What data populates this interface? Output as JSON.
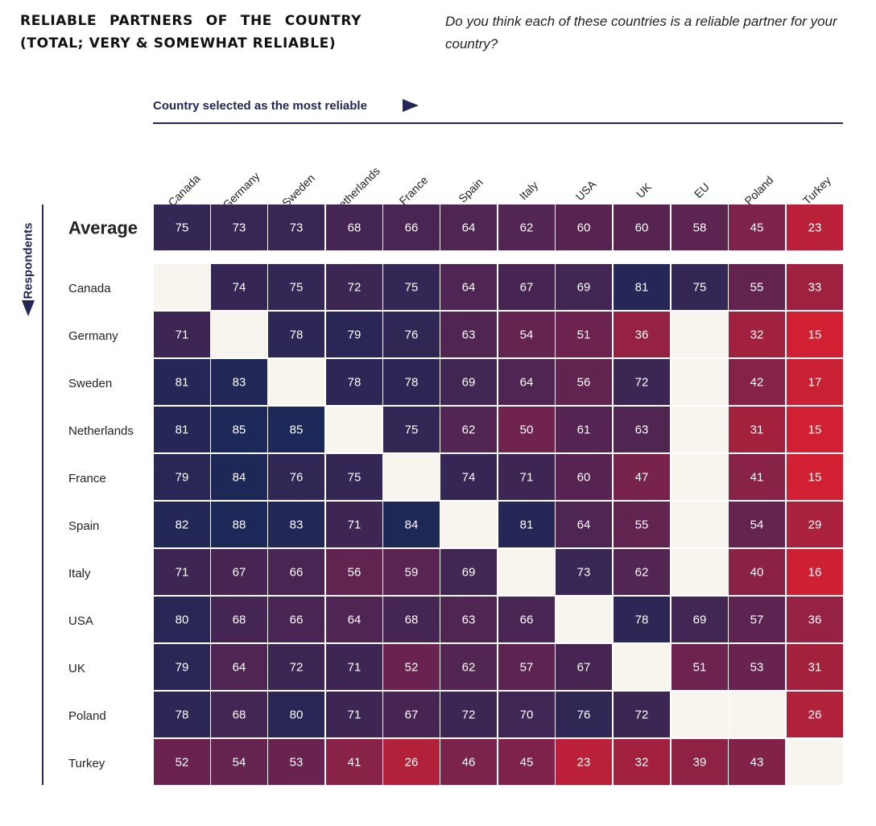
{
  "header": {
    "title": "Reliable partners of the country (total; very & somewhat reliable)",
    "subtitle": "Do you think each of these countries is a reliable partner for your country?",
    "x_axis_label": "Country selected as the most reliable",
    "y_axis_label": "Respondents"
  },
  "colors": {
    "high": "#1c2857",
    "mid": "#6a2350",
    "low": "#d02031",
    "empty": "#f8f4ee",
    "cell_text": "#ffffff",
    "accent": "#232758"
  },
  "chart_data": {
    "type": "heatmap",
    "title": "Reliable partners of the country (total; very & somewhat reliable)",
    "subtitle": "Do you think each of these countries is a reliable partner for your country?",
    "xlabel": "Country selected as the most reliable",
    "ylabel": "Respondents",
    "columns": [
      "Canada",
      "Germany",
      "Sweden",
      "Netherlands",
      "France",
      "Spain",
      "Italy",
      "USA",
      "UK",
      "EU",
      "Poland",
      "Turkey"
    ],
    "average": {
      "label": "Average",
      "values": [
        75,
        73,
        73,
        68,
        66,
        64,
        62,
        60,
        60,
        58,
        45,
        23
      ]
    },
    "rows": [
      {
        "label": "Canada",
        "values": [
          null,
          74,
          75,
          72,
          75,
          64,
          67,
          69,
          81,
          75,
          55,
          33
        ]
      },
      {
        "label": "Germany",
        "values": [
          71,
          null,
          78,
          79,
          76,
          63,
          54,
          51,
          36,
          null,
          32,
          15
        ]
      },
      {
        "label": "Sweden",
        "values": [
          81,
          83,
          null,
          78,
          78,
          69,
          64,
          56,
          72,
          null,
          42,
          17
        ]
      },
      {
        "label": "Netherlands",
        "values": [
          81,
          85,
          85,
          null,
          75,
          62,
          50,
          61,
          63,
          null,
          31,
          15
        ]
      },
      {
        "label": "France",
        "values": [
          79,
          84,
          76,
          75,
          null,
          74,
          71,
          60,
          47,
          null,
          41,
          15
        ]
      },
      {
        "label": "Spain",
        "values": [
          82,
          88,
          83,
          71,
          84,
          null,
          81,
          64,
          55,
          null,
          54,
          29
        ]
      },
      {
        "label": "Italy",
        "values": [
          71,
          67,
          66,
          56,
          59,
          69,
          null,
          73,
          62,
          null,
          40,
          16
        ]
      },
      {
        "label": "USA",
        "values": [
          80,
          68,
          66,
          64,
          68,
          63,
          66,
          null,
          78,
          69,
          57,
          36
        ]
      },
      {
        "label": "UK",
        "values": [
          79,
          64,
          72,
          71,
          52,
          62,
          57,
          67,
          null,
          51,
          53,
          31
        ]
      },
      {
        "label": "Poland",
        "values": [
          78,
          68,
          80,
          71,
          67,
          72,
          70,
          76,
          72,
          null,
          null,
          26
        ]
      },
      {
        "label": "Turkey",
        "values": [
          52,
          54,
          53,
          41,
          26,
          46,
          45,
          23,
          32,
          39,
          43,
          null
        ]
      }
    ]
  }
}
